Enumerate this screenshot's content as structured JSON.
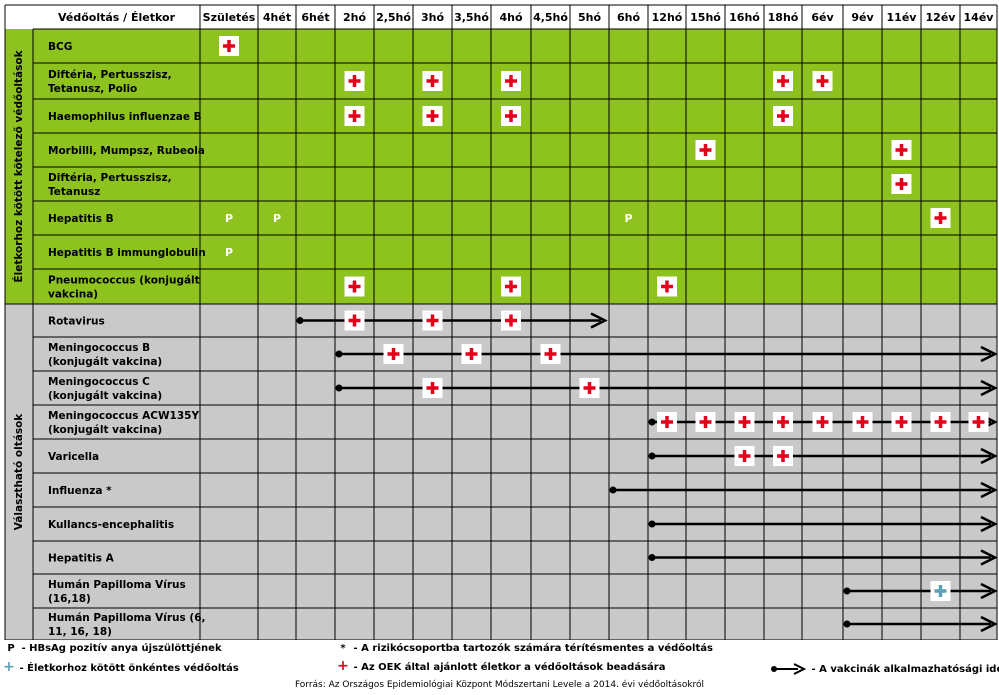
{
  "header": {
    "first_col": "Védőoltás / Életkor",
    "ages": [
      "Születés",
      "4hét",
      "6hét",
      "2hó",
      "2,5hó",
      "3hó",
      "3,5hó",
      "4hó",
      "4,5hó",
      "5hó",
      "6hó",
      "12hó",
      "15hó",
      "16hó",
      "18hó",
      "6év",
      "9év",
      "11év",
      "12év",
      "14év"
    ]
  },
  "groups": [
    {
      "label": "Életkorhoz kötött kötelező védőoltások",
      "color": "#8dc21f"
    },
    {
      "label": "Választható oltások",
      "color": "#c9c9c9"
    }
  ],
  "rows": [
    {
      "group": 0,
      "name": [
        "BCG"
      ],
      "marks": [
        {
          "col": 0,
          "type": "plus"
        }
      ]
    },
    {
      "group": 0,
      "name": [
        "Diftéria, Pertusszisz,",
        "Tetanusz, Polio"
      ],
      "marks": [
        {
          "col": 3,
          "type": "plus"
        },
        {
          "col": 5,
          "type": "plus"
        },
        {
          "col": 7,
          "type": "plus"
        },
        {
          "col": 14,
          "type": "plus"
        },
        {
          "col": 15,
          "type": "plus"
        }
      ]
    },
    {
      "group": 0,
      "name": [
        "Haemophilus influenzae B"
      ],
      "marks": [
        {
          "col": 3,
          "type": "plus"
        },
        {
          "col": 5,
          "type": "plus"
        },
        {
          "col": 7,
          "type": "plus"
        },
        {
          "col": 14,
          "type": "plus"
        }
      ]
    },
    {
      "group": 0,
      "name": [
        "Morbilli, Mumpsz, Rubeola"
      ],
      "marks": [
        {
          "col": 12,
          "type": "plus"
        },
        {
          "col": 17,
          "type": "plus"
        }
      ]
    },
    {
      "group": 0,
      "name": [
        "Diftéria, Pertusszisz,",
        "Tetanusz"
      ],
      "marks": [
        {
          "col": 17,
          "type": "plus"
        }
      ]
    },
    {
      "group": 0,
      "name": [
        "Hepatitis B"
      ],
      "marks": [
        {
          "col": 0,
          "type": "P"
        },
        {
          "col": 1,
          "type": "P"
        },
        {
          "col": 10,
          "type": "P"
        },
        {
          "col": 18,
          "type": "plus"
        }
      ]
    },
    {
      "group": 0,
      "name": [
        "Hepatitis B immunglobulin"
      ],
      "marks": [
        {
          "col": 0,
          "type": "P"
        }
      ]
    },
    {
      "group": 0,
      "name": [
        "Pneumococcus (konjugált",
        "vakcina)"
      ],
      "marks": [
        {
          "col": 3,
          "type": "plus"
        },
        {
          "col": 7,
          "type": "plus"
        },
        {
          "col": 11,
          "type": "plus"
        }
      ]
    },
    {
      "group": 1,
      "name": [
        "Rotavirus"
      ],
      "arrow": {
        "from": 2,
        "to": 10
      },
      "marks": [
        {
          "col": 3,
          "type": "plus"
        },
        {
          "col": 5,
          "type": "plus"
        },
        {
          "col": 7,
          "type": "plus"
        }
      ]
    },
    {
      "group": 1,
      "name": [
        "Meningococcus B",
        "(konjugált vakcina)"
      ],
      "arrow": {
        "from": 3,
        "to": 19
      },
      "marks": [
        {
          "col": 4,
          "type": "plus"
        },
        {
          "col": 6,
          "type": "plus"
        },
        {
          "col": 8,
          "type": "plus"
        }
      ]
    },
    {
      "group": 1,
      "name": [
        "Meningococcus C",
        "(konjugált vakcina)"
      ],
      "arrow": {
        "from": 3,
        "to": 19
      },
      "marks": [
        {
          "col": 5,
          "type": "plus"
        },
        {
          "col": 9,
          "type": "plus"
        }
      ]
    },
    {
      "group": 1,
      "name": [
        "Meningococcus ACW135Y",
        "(konjugált vakcina)"
      ],
      "arrow": {
        "from": 11,
        "to": 19
      },
      "marks": [
        {
          "col": 11,
          "type": "plus"
        },
        {
          "col": 12,
          "type": "plus"
        },
        {
          "col": 13,
          "type": "plus"
        },
        {
          "col": 14,
          "type": "plus"
        },
        {
          "col": 15,
          "type": "plus"
        },
        {
          "col": 16,
          "type": "plus"
        },
        {
          "col": 17,
          "type": "plus"
        },
        {
          "col": 18,
          "type": "plus"
        },
        {
          "col": 19,
          "type": "plus"
        }
      ]
    },
    {
      "group": 1,
      "name": [
        "Varicella"
      ],
      "arrow": {
        "from": 11,
        "to": 19
      },
      "marks": [
        {
          "col": 13,
          "type": "plus"
        },
        {
          "col": 14,
          "type": "plus"
        }
      ]
    },
    {
      "group": 1,
      "name": [
        "Influenza *"
      ],
      "arrow": {
        "from": 10,
        "to": 19
      },
      "marks": []
    },
    {
      "group": 1,
      "name": [
        "Kullancs-encephalitis"
      ],
      "arrow": {
        "from": 11,
        "to": 19
      },
      "marks": []
    },
    {
      "group": 1,
      "name": [
        "Hepatitis A"
      ],
      "arrow": {
        "from": 11,
        "to": 19
      },
      "marks": []
    },
    {
      "group": 1,
      "name": [
        "Humán Papilloma Vírus",
        "(16,18)"
      ],
      "arrow": {
        "from": 16,
        "to": 19
      },
      "marks": [
        {
          "col": 18,
          "type": "blue"
        }
      ]
    },
    {
      "group": 1,
      "name": [
        "Humán Papilloma Vírus (6,",
        "11, 16, 18)"
      ],
      "arrow": {
        "from": 16,
        "to": 19
      },
      "marks": []
    }
  ],
  "legend": {
    "p_symbol": "P",
    "p_text": "- HBsAg pozitív anya újszülöttjének",
    "blue_symbol": "+",
    "blue_text": "- Életkorhoz kötött önkéntes védőoltás",
    "star_symbol": "*",
    "star_text": "- A rizikócsoportba tartozók számára térítésmentes a védőoltás",
    "red_symbol": "+",
    "red_text": "- Az OEK által ajánlott életkor a védőoltások beadására",
    "arrow_text": "- A vakcinák alkalmazhatósági ideje"
  },
  "source": "Forrás: Az Országos Epidemiológiai Központ Módszertani Levele a 2014. évi védőoltásokról",
  "colors": {
    "green": "#8dc21f",
    "gray": "#c9c9c9",
    "plus_red": "#e2001a",
    "plus_blue": "#5aa0b7",
    "header_bg": "#ffffff"
  }
}
